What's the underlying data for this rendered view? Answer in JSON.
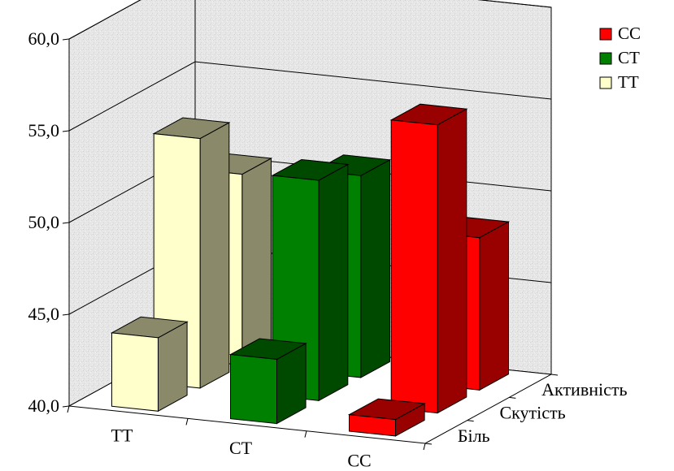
{
  "chart_data": {
    "type": "bar",
    "style": "3d-clustered-columns",
    "categories": [
      "TT",
      "CT",
      "CC"
    ],
    "depth_categories": [
      "Біль",
      "Скутість",
      "Активність"
    ],
    "series": [
      {
        "name": "TT",
        "color": "#FFFFCC",
        "side_color": "#8A8A6B",
        "values": [
          44.0,
          53.6,
          50.4
        ]
      },
      {
        "name": "CT",
        "color": "#008000",
        "side_color": "#004A00",
        "values": [
          43.5,
          52.0,
          51.0
        ]
      },
      {
        "name": "CC",
        "color": "#FF0000",
        "side_color": "#990000",
        "values": [
          40.9,
          55.7,
          48.3
        ]
      }
    ],
    "ylim": [
      40,
      60
    ],
    "yticks": [
      "40,0",
      "45,0",
      "50,0",
      "55,0",
      "60,0"
    ],
    "grid": true,
    "legend_position": "top-right",
    "legend": [
      {
        "label": "CC",
        "color": "#FF0000"
      },
      {
        "label": "CT",
        "color": "#008000"
      },
      {
        "label": "TT",
        "color": "#FFFFCC"
      }
    ]
  }
}
